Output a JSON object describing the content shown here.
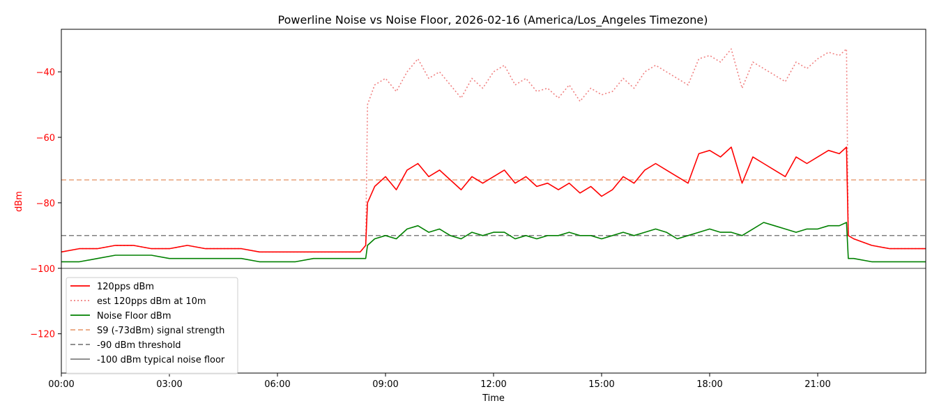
{
  "colors": {
    "signal": "#ff0000",
    "est_10m": "#f08080",
    "noise_floor": "#008000",
    "s9": "#e9a27a",
    "threshold": "#808080",
    "typical_floor": "#808080",
    "ylabel": "#ff0000"
  },
  "chart_data": {
    "type": "line",
    "title": "Powerline Noise vs Noise Floor, 2026-02-16 (America/Los_Angeles Timezone)",
    "xlabel": "Time",
    "ylabel": "dBm",
    "xlim_hours": [
      0,
      24
    ],
    "ylim": [
      -132,
      -27
    ],
    "xticks": [
      {
        "hour": 0,
        "label": "00:00"
      },
      {
        "hour": 3,
        "label": "03:00"
      },
      {
        "hour": 6,
        "label": "06:00"
      },
      {
        "hour": 9,
        "label": "09:00"
      },
      {
        "hour": 12,
        "label": "12:00"
      },
      {
        "hour": 15,
        "label": "15:00"
      },
      {
        "hour": 18,
        "label": "18:00"
      },
      {
        "hour": 21,
        "label": "21:00"
      }
    ],
    "yticks": [
      {
        "value": -40,
        "label": "−40"
      },
      {
        "value": -60,
        "label": "−60"
      },
      {
        "value": -80,
        "label": "−80"
      },
      {
        "value": -100,
        "label": "−100"
      },
      {
        "value": -120,
        "label": "−120"
      }
    ],
    "legend_position": "lower-left",
    "hlines": [
      {
        "name": "S9 (-73dBm) signal strength",
        "value": -73,
        "style": "dashed",
        "color_key": "s9"
      },
      {
        "name": "-90 dBm threshold",
        "value": -90,
        "style": "dashed",
        "color_key": "threshold"
      },
      {
        "name": "-100 dBm typical noise floor",
        "value": -100,
        "style": "solid",
        "color_key": "typical_floor"
      }
    ],
    "series": [
      {
        "name": "120pps dBm",
        "style": "solid",
        "color_key": "signal",
        "x": [
          0,
          0.5,
          1,
          1.5,
          2,
          2.5,
          3,
          3.5,
          4,
          4.5,
          5,
          5.5,
          6,
          6.5,
          7,
          7.5,
          8,
          8.3,
          8.45,
          8.5,
          8.7,
          9,
          9.3,
          9.6,
          9.9,
          10.2,
          10.5,
          10.8,
          11.1,
          11.4,
          11.7,
          12,
          12.3,
          12.6,
          12.9,
          13.2,
          13.5,
          13.8,
          14.1,
          14.4,
          14.7,
          15,
          15.3,
          15.6,
          15.9,
          16.2,
          16.5,
          16.8,
          17.1,
          17.4,
          17.7,
          18,
          18.3,
          18.6,
          18.9,
          19.2,
          19.5,
          19.8,
          20.1,
          20.4,
          20.7,
          21,
          21.3,
          21.6,
          21.8,
          21.85,
          22,
          22.5,
          23,
          23.5,
          24
        ],
        "y": [
          -95,
          -94,
          -94,
          -93,
          -93,
          -94,
          -94,
          -93,
          -94,
          -94,
          -94,
          -95,
          -95,
          -95,
          -95,
          -95,
          -95,
          -95,
          -93,
          -80,
          -75,
          -72,
          -76,
          -70,
          -68,
          -72,
          -70,
          -73,
          -76,
          -72,
          -74,
          -72,
          -70,
          -74,
          -72,
          -75,
          -74,
          -76,
          -74,
          -77,
          -75,
          -78,
          -76,
          -72,
          -74,
          -70,
          -68,
          -70,
          -72,
          -74,
          -65,
          -64,
          -66,
          -63,
          -74,
          -66,
          -68,
          -70,
          -72,
          -66,
          -68,
          -66,
          -64,
          -65,
          -63,
          -90,
          -91,
          -93,
          -94,
          -94,
          -94
        ]
      },
      {
        "name": "est 120pps dBm at 10m",
        "style": "dotted",
        "color_key": "est_10m",
        "x": [
          0,
          0.5,
          1,
          1.5,
          2,
          2.5,
          3,
          3.5,
          4,
          4.5,
          5,
          5.5,
          6,
          6.5,
          7,
          7.5,
          8,
          8.3,
          8.45,
          8.5,
          8.7,
          9,
          9.3,
          9.6,
          9.9,
          10.2,
          10.5,
          10.8,
          11.1,
          11.4,
          11.7,
          12,
          12.3,
          12.6,
          12.9,
          13.2,
          13.5,
          13.8,
          14.1,
          14.4,
          14.7,
          15,
          15.3,
          15.6,
          15.9,
          16.2,
          16.5,
          16.8,
          17.1,
          17.4,
          17.7,
          18,
          18.3,
          18.6,
          18.9,
          19.2,
          19.5,
          19.8,
          20.1,
          20.4,
          20.7,
          21,
          21.3,
          21.6,
          21.8,
          21.85,
          22,
          22.5,
          23,
          23.5,
          24
        ],
        "y": [
          -95,
          -94,
          -94,
          -93,
          -93,
          -94,
          -94,
          -93,
          -94,
          -94,
          -94,
          -95,
          -95,
          -95,
          -95,
          -95,
          -95,
          -95,
          -93,
          -50,
          -44,
          -42,
          -46,
          -40,
          -36,
          -42,
          -40,
          -44,
          -48,
          -42,
          -45,
          -40,
          -38,
          -44,
          -42,
          -46,
          -45,
          -48,
          -44,
          -49,
          -45,
          -47,
          -46,
          -42,
          -45,
          -40,
          -38,
          -40,
          -42,
          -44,
          -36,
          -35,
          -37,
          -33,
          -45,
          -37,
          -39,
          -41,
          -43,
          -37,
          -39,
          -36,
          -34,
          -35,
          -33,
          -90,
          -91,
          -93,
          -94,
          -94,
          -94
        ]
      },
      {
        "name": "Noise Floor dBm",
        "style": "solid",
        "color_key": "noise_floor",
        "x": [
          0,
          0.5,
          1,
          1.5,
          2,
          2.5,
          3,
          3.5,
          4,
          4.5,
          5,
          5.5,
          6,
          6.5,
          7,
          7.5,
          8,
          8.3,
          8.45,
          8.5,
          8.7,
          9,
          9.3,
          9.6,
          9.9,
          10.2,
          10.5,
          10.8,
          11.1,
          11.4,
          11.7,
          12,
          12.3,
          12.6,
          12.9,
          13.2,
          13.5,
          13.8,
          14.1,
          14.4,
          14.7,
          15,
          15.3,
          15.6,
          15.9,
          16.2,
          16.5,
          16.8,
          17.1,
          17.4,
          17.7,
          18,
          18.3,
          18.6,
          18.9,
          19.2,
          19.5,
          19.8,
          20.1,
          20.4,
          20.7,
          21,
          21.3,
          21.6,
          21.8,
          21.85,
          22,
          22.5,
          23,
          23.5,
          24
        ],
        "y": [
          -98,
          -98,
          -97,
          -96,
          -96,
          -96,
          -97,
          -97,
          -97,
          -97,
          -97,
          -98,
          -98,
          -98,
          -97,
          -97,
          -97,
          -97,
          -97,
          -93,
          -91,
          -90,
          -91,
          -88,
          -87,
          -89,
          -88,
          -90,
          -91,
          -89,
          -90,
          -89,
          -89,
          -91,
          -90,
          -91,
          -90,
          -90,
          -89,
          -90,
          -90,
          -91,
          -90,
          -89,
          -90,
          -89,
          -88,
          -89,
          -91,
          -90,
          -89,
          -88,
          -89,
          -89,
          -90,
          -88,
          -86,
          -87,
          -88,
          -89,
          -88,
          -88,
          -87,
          -87,
          -86,
          -97,
          -97,
          -98,
          -98,
          -98,
          -98
        ]
      }
    ]
  }
}
